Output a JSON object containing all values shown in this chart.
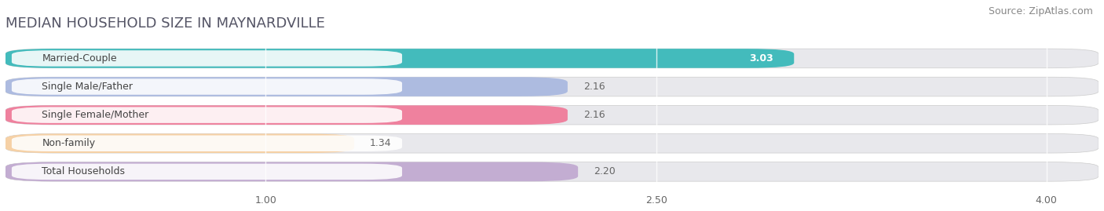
{
  "title": "MEDIAN HOUSEHOLD SIZE IN MAYNARDVILLE",
  "source": "Source: ZipAtlas.com",
  "categories": [
    "Married-Couple",
    "Single Male/Father",
    "Single Female/Mother",
    "Non-family",
    "Total Households"
  ],
  "values": [
    3.03,
    2.16,
    2.16,
    1.34,
    2.2
  ],
  "bar_colors": [
    "#35b8b8",
    "#a8b8e0",
    "#f07898",
    "#f8d0a0",
    "#c0a8d0"
  ],
  "value_label_inside": [
    true,
    false,
    false,
    false,
    false
  ],
  "xlim_display": [
    0.0,
    4.2
  ],
  "x_ticks": [
    1.0,
    2.5,
    4.0
  ],
  "x_tick_labels": [
    "1.00",
    "2.50",
    "4.00"
  ],
  "bar_height": 0.68,
  "background_color": "#ffffff",
  "bar_bg_color": "#e8e8ec",
  "title_fontsize": 13,
  "source_fontsize": 9,
  "label_fontsize": 9,
  "value_fontsize": 9,
  "title_color": "#555566",
  "source_color": "#888888",
  "value_color_inside": "#ffffff",
  "value_color_outside": "#666666",
  "cat_label_color": "#444444"
}
